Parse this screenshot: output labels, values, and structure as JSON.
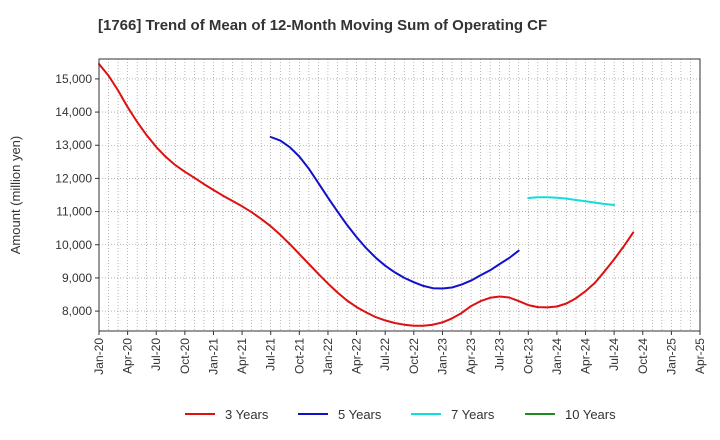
{
  "chart_data": {
    "type": "line",
    "title": "[1766]  Trend of Mean of 12-Month Moving Sum of Operating CF",
    "xlabel": "",
    "ylabel": "Amount (million yen)",
    "ylim": [
      7400,
      15600
    ],
    "yticks": [
      8000,
      9000,
      10000,
      11000,
      12000,
      13000,
      14000,
      15000
    ],
    "ytick_labels": [
      "8,000",
      "9,000",
      "10,000",
      "11,000",
      "12,000",
      "13,000",
      "14,000",
      "15,000"
    ],
    "x_range_months": [
      0,
      63
    ],
    "xticks": [
      {
        "label": "Jan-20",
        "m": 0
      },
      {
        "label": "Apr-20",
        "m": 3
      },
      {
        "label": "Jul-20",
        "m": 6
      },
      {
        "label": "Oct-20",
        "m": 9
      },
      {
        "label": "Jan-21",
        "m": 12
      },
      {
        "label": "Apr-21",
        "m": 15
      },
      {
        "label": "Jul-21",
        "m": 18
      },
      {
        "label": "Oct-21",
        "m": 21
      },
      {
        "label": "Jan-22",
        "m": 24
      },
      {
        "label": "Apr-22",
        "m": 27
      },
      {
        "label": "Jul-22",
        "m": 30
      },
      {
        "label": "Oct-22",
        "m": 33
      },
      {
        "label": "Jan-23",
        "m": 36
      },
      {
        "label": "Apr-23",
        "m": 39
      },
      {
        "label": "Jul-23",
        "m": 42
      },
      {
        "label": "Oct-23",
        "m": 45
      },
      {
        "label": "Jan-24",
        "m": 48
      },
      {
        "label": "Apr-24",
        "m": 51
      },
      {
        "label": "Jul-24",
        "m": 54
      },
      {
        "label": "Oct-24",
        "m": 57
      },
      {
        "label": "Jan-25",
        "m": 60
      },
      {
        "label": "Apr-25",
        "m": 63
      }
    ],
    "grid": true,
    "legend_position": "bottom",
    "series": [
      {
        "name": "3 Years",
        "color": "#dd1111",
        "points": [
          [
            0,
            15450
          ],
          [
            1,
            15100
          ],
          [
            2,
            14650
          ],
          [
            3,
            14150
          ],
          [
            4,
            13700
          ],
          [
            5,
            13300
          ],
          [
            6,
            12950
          ],
          [
            7,
            12650
          ],
          [
            8,
            12400
          ],
          [
            9,
            12200
          ],
          [
            10,
            12020
          ],
          [
            11,
            11830
          ],
          [
            12,
            11650
          ],
          [
            13,
            11480
          ],
          [
            14,
            11320
          ],
          [
            15,
            11160
          ],
          [
            16,
            10980
          ],
          [
            17,
            10780
          ],
          [
            18,
            10560
          ],
          [
            19,
            10300
          ],
          [
            20,
            10020
          ],
          [
            21,
            9720
          ],
          [
            22,
            9420
          ],
          [
            23,
            9120
          ],
          [
            24,
            8830
          ],
          [
            25,
            8560
          ],
          [
            26,
            8320
          ],
          [
            27,
            8120
          ],
          [
            28,
            7960
          ],
          [
            29,
            7820
          ],
          [
            30,
            7720
          ],
          [
            31,
            7640
          ],
          [
            32,
            7590
          ],
          [
            33,
            7560
          ],
          [
            34,
            7560
          ],
          [
            35,
            7590
          ],
          [
            36,
            7660
          ],
          [
            37,
            7780
          ],
          [
            38,
            7940
          ],
          [
            39,
            8150
          ],
          [
            40,
            8300
          ],
          [
            41,
            8400
          ],
          [
            42,
            8440
          ],
          [
            43,
            8410
          ],
          [
            44,
            8300
          ],
          [
            45,
            8180
          ],
          [
            46,
            8120
          ],
          [
            47,
            8110
          ],
          [
            48,
            8140
          ],
          [
            49,
            8230
          ],
          [
            50,
            8390
          ],
          [
            51,
            8600
          ],
          [
            52,
            8860
          ],
          [
            53,
            9200
          ],
          [
            54,
            9560
          ],
          [
            55,
            9950
          ],
          [
            56,
            10370
          ]
        ]
      },
      {
        "name": "5 Years",
        "color": "#1111cc",
        "points": [
          [
            18,
            13250
          ],
          [
            19,
            13140
          ],
          [
            20,
            12940
          ],
          [
            21,
            12660
          ],
          [
            22,
            12290
          ],
          [
            23,
            11860
          ],
          [
            24,
            11420
          ],
          [
            25,
            11000
          ],
          [
            26,
            10600
          ],
          [
            27,
            10230
          ],
          [
            28,
            9900
          ],
          [
            29,
            9610
          ],
          [
            30,
            9370
          ],
          [
            31,
            9170
          ],
          [
            32,
            9000
          ],
          [
            33,
            8870
          ],
          [
            34,
            8760
          ],
          [
            35,
            8690
          ],
          [
            36,
            8680
          ],
          [
            37,
            8710
          ],
          [
            38,
            8800
          ],
          [
            39,
            8920
          ],
          [
            40,
            9080
          ],
          [
            41,
            9230
          ],
          [
            42,
            9420
          ],
          [
            43,
            9600
          ],
          [
            44,
            9820
          ]
        ]
      },
      {
        "name": "7 Years",
        "color": "#11dddd",
        "points": [
          [
            45,
            11410
          ],
          [
            46,
            11430
          ],
          [
            47,
            11430
          ],
          [
            48,
            11420
          ],
          [
            49,
            11390
          ],
          [
            50,
            11350
          ],
          [
            51,
            11310
          ],
          [
            52,
            11270
          ],
          [
            53,
            11230
          ],
          [
            54,
            11200
          ]
        ]
      },
      {
        "name": "10 Years",
        "color": "#228822",
        "points": []
      }
    ]
  }
}
